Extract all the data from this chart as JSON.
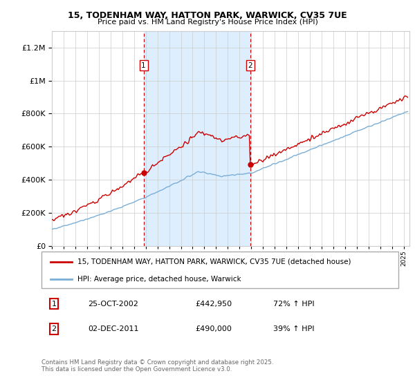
{
  "title_line1": "15, TODENHAM WAY, HATTON PARK, WARWICK, CV35 7UE",
  "title_line2": "Price paid vs. HM Land Registry's House Price Index (HPI)",
  "legend_red": "15, TODENHAM WAY, HATTON PARK, WARWICK, CV35 7UE (detached house)",
  "legend_blue": "HPI: Average price, detached house, Warwick",
  "annotation1_date": "25-OCT-2002",
  "annotation1_price": "£442,950",
  "annotation1_hpi": "72% ↑ HPI",
  "annotation2_date": "02-DEC-2011",
  "annotation2_price": "£490,000",
  "annotation2_hpi": "39% ↑ HPI",
  "footer": "Contains HM Land Registry data © Crown copyright and database right 2025.\nThis data is licensed under the Open Government Licence v3.0.",
  "ylim_max": 1300000,
  "background_color": "#ffffff",
  "shaded_region_color": "#ddeeff",
  "red_color": "#cc0000",
  "blue_color": "#7aaed6",
  "grid_color": "#cccccc",
  "marker1_year": 2002.82,
  "marker1_value": 442950,
  "marker2_year": 2011.92,
  "marker2_value": 490000
}
